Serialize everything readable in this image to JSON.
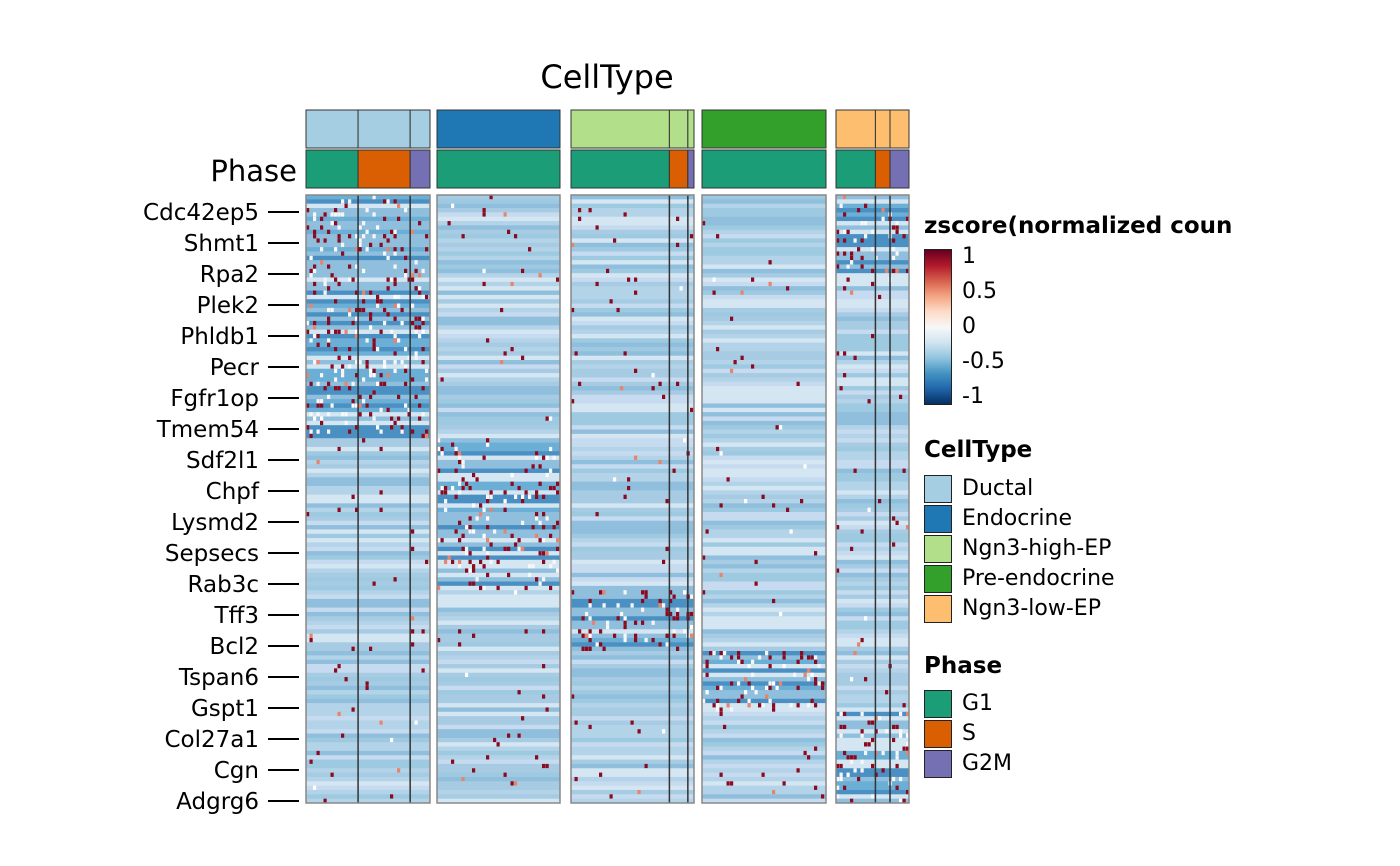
{
  "chart_data": {
    "type": "heatmap",
    "title": "CellType",
    "annotation_rows": [
      "CellType",
      "Phase"
    ],
    "annotation_row_label": "Phase",
    "genes": [
      "Cdc42ep5",
      "Shmt1",
      "Rpa2",
      "Plek2",
      "Phldb1",
      "Pecr",
      "Fgfr1op",
      "Tmem54",
      "Sdf2l1",
      "Chpf",
      "Lysmd2",
      "Sepsecs",
      "Rab3c",
      "Tff3",
      "Bcl2",
      "Tspan6",
      "Gspt1",
      "Col27a1",
      "Cgn",
      "Adgrg6"
    ],
    "cell_type_groups": [
      {
        "name": "Ductal",
        "phase_fractions": [
          0.42,
          0.42,
          0.16
        ]
      },
      {
        "name": "Endocrine",
        "phase_fractions": [
          1.0,
          0.0,
          0.0
        ]
      },
      {
        "name": "Ngn3-high-EP",
        "phase_fractions": [
          0.8,
          0.15,
          0.05
        ]
      },
      {
        "name": "Pre-endocrine",
        "phase_fractions": [
          1.0,
          0.0,
          0.0
        ]
      },
      {
        "name": "Ngn3-low-EP",
        "phase_fractions": [
          0.54,
          0.2,
          0.26
        ]
      }
    ],
    "high_expression_blocks": [
      {
        "cell_type": "Ductal",
        "genes": [
          "Cdc42ep5",
          "Shmt1",
          "Rpa2",
          "Plek2",
          "Phldb1",
          "Pecr",
          "Fgfr1op",
          "Tmem54"
        ]
      },
      {
        "cell_type": "Endocrine",
        "genes": [
          "Sdf2l1",
          "Chpf",
          "Lysmd2",
          "Sepsecs",
          "Rab3c"
        ]
      },
      {
        "cell_type": "Ngn3-high-EP",
        "genes": [
          "Tff3",
          "Bcl2"
        ]
      },
      {
        "cell_type": "Pre-endocrine",
        "genes": [
          "Tspan6",
          "Gspt1"
        ]
      },
      {
        "cell_type": "Ngn3-low-EP",
        "genes": [
          "Col27a1",
          "Cgn",
          "Adgrg6",
          "Cdc42ep5",
          "Shmt1",
          "Rpa2"
        ]
      }
    ],
    "colorbar": {
      "title": "zscore(normalized coun",
      "ticks": [
        "1",
        "0.5",
        "0",
        "-0.5",
        "-1"
      ],
      "range": [
        -1,
        1
      ],
      "colors": [
        "#053061",
        "#2166ac",
        "#4393c3",
        "#92c5de",
        "#d1e5f0",
        "#f7f7f7",
        "#fddbc7",
        "#f4a582",
        "#d6604d",
        "#b2182b",
        "#67001f"
      ]
    },
    "legends": {
      "celltype": {
        "title": "CellType",
        "items": [
          {
            "label": "Ductal",
            "color": "#a6cee3"
          },
          {
            "label": "Endocrine",
            "color": "#1f78b4"
          },
          {
            "label": "Ngn3-high-EP",
            "color": "#b2df8a"
          },
          {
            "label": "Pre-endocrine",
            "color": "#33a02c"
          },
          {
            "label": "Ngn3-low-EP",
            "color": "#fdbf6f"
          }
        ]
      },
      "phase": {
        "title": "Phase",
        "items": [
          {
            "label": "G1",
            "color": "#1b9e77"
          },
          {
            "label": "S",
            "color": "#d95f02"
          },
          {
            "label": "G2M",
            "color": "#7570b3"
          }
        ]
      }
    }
  }
}
